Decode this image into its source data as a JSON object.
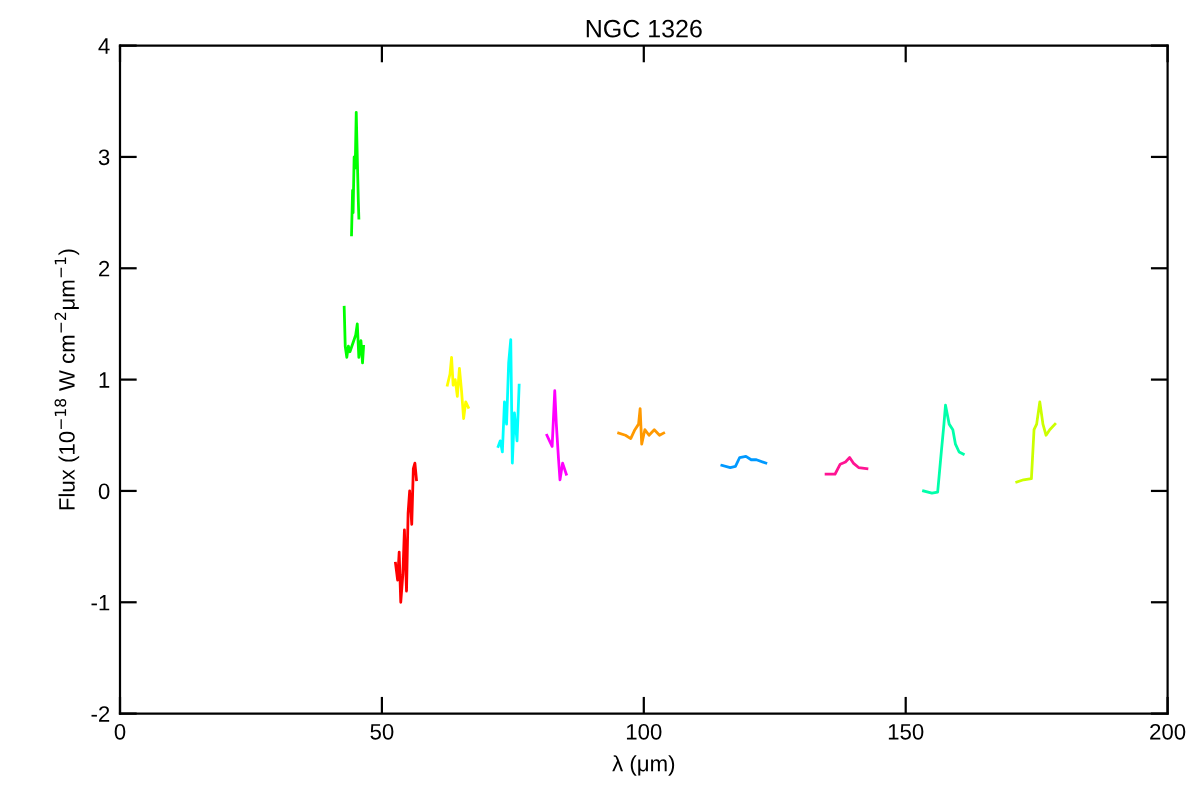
{
  "chart_data": {
    "type": "line",
    "title": "NGC 1326",
    "xlabel": "λ (μm)",
    "ylabel": "Flux (10$^{−18}$ W cm$^{−2}$μm$^{−1}$)",
    "xlim": [
      0,
      200
    ],
    "ylim": [
      -2,
      4
    ],
    "xticks": [
      0,
      50,
      100,
      150,
      200
    ],
    "yticks": [
      -2,
      -1,
      0,
      1,
      2,
      3,
      4
    ],
    "grid": false,
    "series": [
      {
        "color": "#00ff00",
        "x": [
          44.2,
          44.4,
          44.5,
          44.7,
          44.9,
          45.1,
          45.3,
          45.5,
          45.6
        ],
        "values": [
          2.3,
          2.7,
          2.5,
          3.0,
          2.9,
          3.4,
          3.0,
          2.6,
          2.45
        ]
      },
      {
        "color": "#00ff00",
        "x": [
          42.8,
          43.0,
          43.3,
          43.6,
          43.9,
          45.0,
          45.3,
          45.6,
          46.0,
          46.3,
          46.5
        ],
        "values": [
          1.65,
          1.3,
          1.2,
          1.3,
          1.25,
          1.4,
          1.5,
          1.2,
          1.35,
          1.15,
          1.3
        ]
      },
      {
        "color": "#ff0000",
        "x": [
          52.6,
          53.0,
          53.3,
          53.6,
          54.0,
          54.3,
          54.7,
          55.0,
          55.3,
          55.7,
          56.0,
          56.3,
          56.6
        ],
        "values": [
          -0.65,
          -0.8,
          -0.55,
          -1.0,
          -0.75,
          -0.35,
          -0.9,
          -0.2,
          0.0,
          -0.3,
          0.2,
          0.25,
          0.1
        ]
      },
      {
        "color": "#ffff00",
        "x": [
          62.5,
          63.0,
          63.3,
          63.6,
          64.0,
          64.4,
          64.8,
          65.2,
          65.6,
          66.0,
          66.5
        ],
        "values": [
          0.95,
          1.05,
          1.2,
          0.95,
          1.0,
          0.85,
          1.1,
          0.9,
          0.65,
          0.8,
          0.75
        ]
      },
      {
        "color": "#00ffff",
        "x": [
          72.2,
          72.6,
          73.0,
          73.4,
          73.8,
          74.2,
          74.6,
          74.9,
          75.3,
          75.8,
          76.2
        ],
        "values": [
          0.4,
          0.45,
          0.35,
          0.8,
          0.6,
          1.15,
          1.36,
          0.25,
          0.7,
          0.45,
          0.95
        ]
      },
      {
        "color": "#ff00ff",
        "x": [
          81.5,
          82.0,
          82.5,
          83.0,
          83.3,
          83.7,
          84.0,
          84.5,
          85.2
        ],
        "values": [
          0.5,
          0.45,
          0.4,
          0.9,
          0.6,
          0.3,
          0.1,
          0.25,
          0.15
        ]
      },
      {
        "color": "#ff9900",
        "x": [
          95.2,
          96.5,
          97.5,
          98.3,
          99.0,
          99.3,
          99.6,
          100.2,
          101.0,
          102.0,
          103.0,
          103.8
        ],
        "values": [
          0.52,
          0.5,
          0.47,
          0.55,
          0.6,
          0.74,
          0.42,
          0.55,
          0.5,
          0.55,
          0.5,
          0.52
        ]
      },
      {
        "color": "#0099ff",
        "x": [
          114.9,
          116.5,
          117.5,
          118.3,
          119.5,
          120.5,
          121.5,
          123.3
        ],
        "values": [
          0.23,
          0.21,
          0.22,
          0.3,
          0.31,
          0.28,
          0.28,
          0.25
        ]
      },
      {
        "color": "#ff1493",
        "x": [
          134.8,
          136.5,
          137.5,
          138.5,
          139.3,
          140.0,
          141.0,
          142.6
        ],
        "values": [
          0.15,
          0.15,
          0.24,
          0.26,
          0.3,
          0.25,
          0.21,
          0.2
        ]
      },
      {
        "color": "#00ffaa",
        "x": [
          153.4,
          155.0,
          156.1,
          156.8,
          157.3,
          157.6,
          158.3,
          159.0,
          159.5,
          160.2,
          161.0
        ],
        "values": [
          0.0,
          -0.02,
          -0.01,
          0.35,
          0.6,
          0.77,
          0.6,
          0.55,
          0.42,
          0.35,
          0.33
        ]
      },
      {
        "color": "#ccff00",
        "x": [
          171.2,
          172.5,
          174.0,
          174.5,
          175.0,
          175.6,
          176.2,
          176.8,
          177.5,
          178.5
        ],
        "values": [
          0.08,
          0.1,
          0.11,
          0.55,
          0.6,
          0.8,
          0.6,
          0.5,
          0.55,
          0.6
        ]
      }
    ]
  }
}
